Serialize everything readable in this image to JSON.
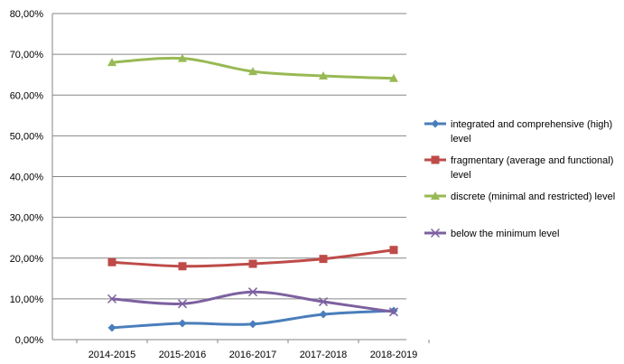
{
  "chart_data": {
    "type": "line",
    "categories": [
      "2014-2015",
      "2015-2016",
      "2016-2017",
      "2017-2018",
      "2018-2019"
    ],
    "ylim": [
      0,
      80
    ],
    "yticks": [
      0,
      10,
      20,
      30,
      40,
      50,
      60,
      70,
      80
    ],
    "ytick_labels": [
      "0,00%",
      "10,00%",
      "20,00%",
      "30,00%",
      "40,00%",
      "50,00%",
      "60,00%",
      "70,00%",
      "80,00%"
    ],
    "y_unit": "percent",
    "grid": "horizontal",
    "legend_position": "right",
    "smoothed": true,
    "series": [
      {
        "name_lines": [
          "integrated and comprehensive (high)",
          "level"
        ],
        "color": "#4a7ebb",
        "marker": "diamond",
        "values": [
          2.9,
          4.0,
          3.8,
          6.2,
          7.1
        ]
      },
      {
        "name_lines": [
          "fragmentary (average and functional)",
          "level"
        ],
        "color": "#be4b48",
        "marker": "square",
        "values": [
          19.0,
          18.0,
          18.6,
          19.8,
          22.0
        ]
      },
      {
        "name_lines": [
          "discrete (minimal and restricted) level"
        ],
        "color": "#98b954",
        "marker": "triangle",
        "values": [
          68.0,
          69.0,
          65.8,
          64.7,
          64.1
        ]
      },
      {
        "name_lines": [
          "below the minimum  level"
        ],
        "color": "#7d60a0",
        "marker": "x",
        "values": [
          10.0,
          8.8,
          11.7,
          9.3,
          6.8
        ]
      }
    ]
  }
}
